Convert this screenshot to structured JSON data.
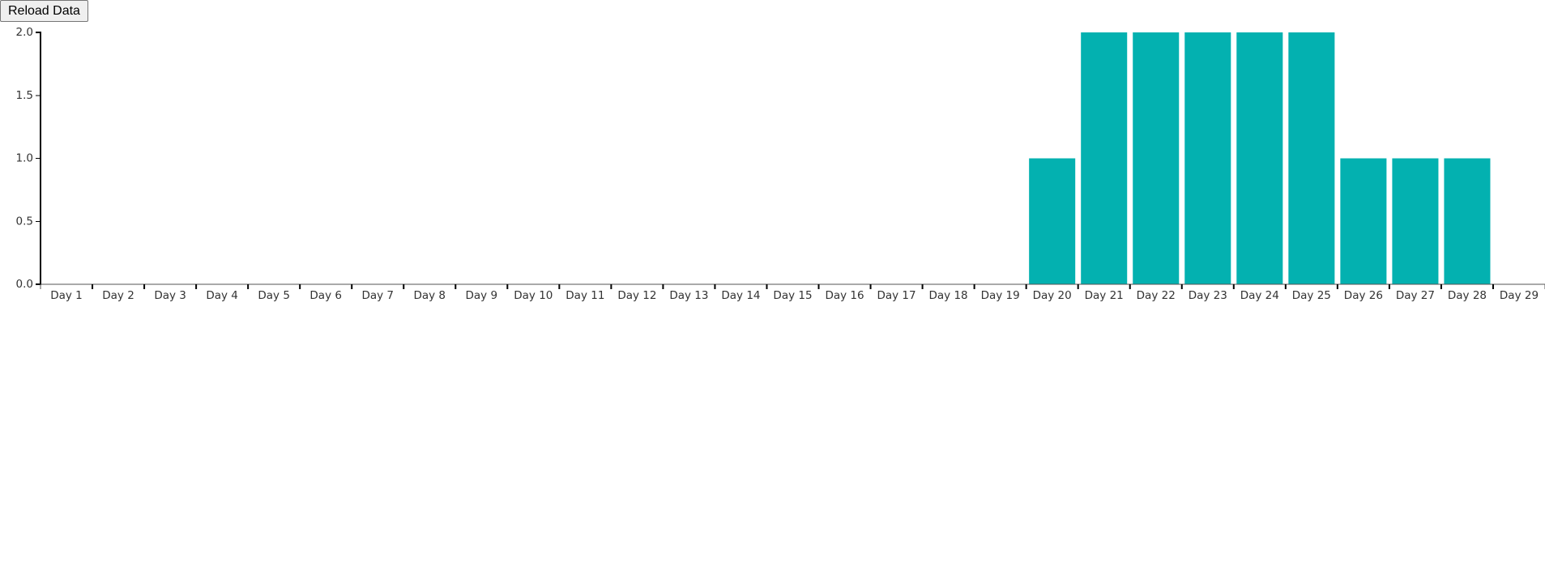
{
  "controls": {
    "reload_label": "Reload Data"
  },
  "colors": {
    "bar": "#03b1b0",
    "axis": "#000000"
  },
  "chart_data": {
    "type": "bar",
    "title": "",
    "xlabel": "",
    "ylabel": "",
    "ylim": [
      0,
      2
    ],
    "y_ticks": [
      "0.0",
      "0.5",
      "1.0",
      "1.5",
      "2.0"
    ],
    "y_tick_values": [
      0,
      0.5,
      1,
      1.5,
      2
    ],
    "grid": false,
    "legend": "none",
    "categories": [
      "Day 1",
      "Day 2",
      "Day 3",
      "Day 4",
      "Day 5",
      "Day 6",
      "Day 7",
      "Day 8",
      "Day 9",
      "Day 10",
      "Day 11",
      "Day 12",
      "Day 13",
      "Day 14",
      "Day 15",
      "Day 16",
      "Day 17",
      "Day 18",
      "Day 19",
      "Day 20",
      "Day 21",
      "Day 22",
      "Day 23",
      "Day 24",
      "Day 25",
      "Day 26",
      "Day 27",
      "Day 28",
      "Day 29"
    ],
    "values": [
      0,
      0,
      0,
      0,
      0,
      0,
      0,
      0,
      0,
      0,
      0,
      0,
      0,
      0,
      0,
      0,
      0,
      0,
      0,
      1,
      2,
      2,
      2,
      2,
      2,
      1,
      1,
      1,
      0
    ]
  }
}
